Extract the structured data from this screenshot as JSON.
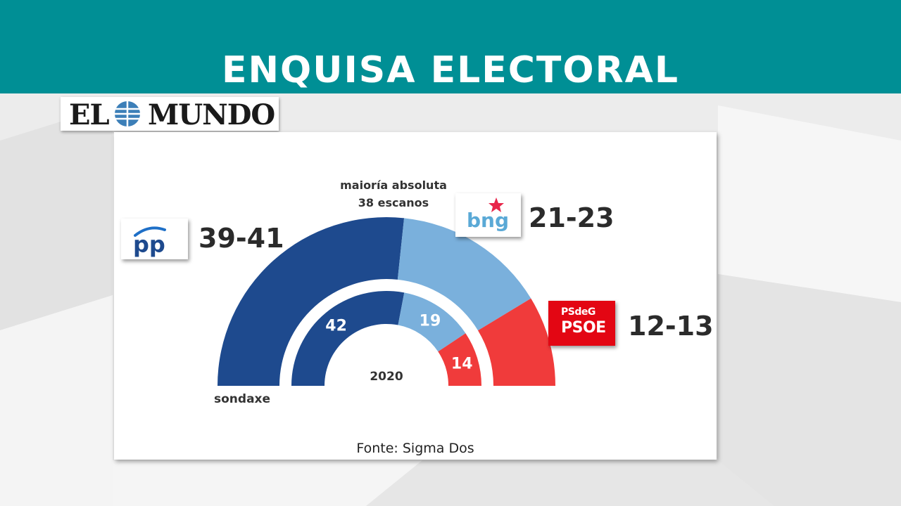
{
  "header": {
    "title": "ENQUISA ELECTORAL"
  },
  "brand": {
    "logo_left": "EL",
    "logo_right": "MUNDO"
  },
  "majority": {
    "line1": "maioría absoluta",
    "line2": "38 escanos"
  },
  "parties": {
    "pp": {
      "logo_text": "pp",
      "seats_label": "39-41"
    },
    "bng": {
      "logo_text": "bng",
      "seats_label": "21-23"
    },
    "psoe": {
      "logo_small": "PSdeG",
      "logo_big": "PSOE",
      "seats_label": "12-13"
    }
  },
  "source": "Fonte: Sigma Dos",
  "colors": {
    "header": "#008f95",
    "pp": "#1e4a8e",
    "bng": "#7ab0dc",
    "psoe": "#f03b3b"
  },
  "chart_data": [
    {
      "type": "half-donut",
      "label": "sondaxe",
      "total": 75,
      "series": [
        {
          "name": "PP",
          "value": 40,
          "label": "39-41",
          "color": "#1e4a8e"
        },
        {
          "name": "BNG",
          "value": 22,
          "label": "21-23",
          "color": "#7ab0dc"
        },
        {
          "name": "PSdeG-PSOE",
          "value": 13,
          "label": "12-13",
          "color": "#f03b3b"
        }
      ]
    },
    {
      "type": "half-donut",
      "label": "2020",
      "total": 75,
      "series": [
        {
          "name": "PP",
          "value": 42,
          "label": "42",
          "color": "#1e4a8e"
        },
        {
          "name": "BNG",
          "value": 19,
          "label": "19",
          "color": "#7ab0dc"
        },
        {
          "name": "PSdeG-PSOE",
          "value": 14,
          "label": "14",
          "color": "#f03b3b"
        }
      ]
    }
  ]
}
